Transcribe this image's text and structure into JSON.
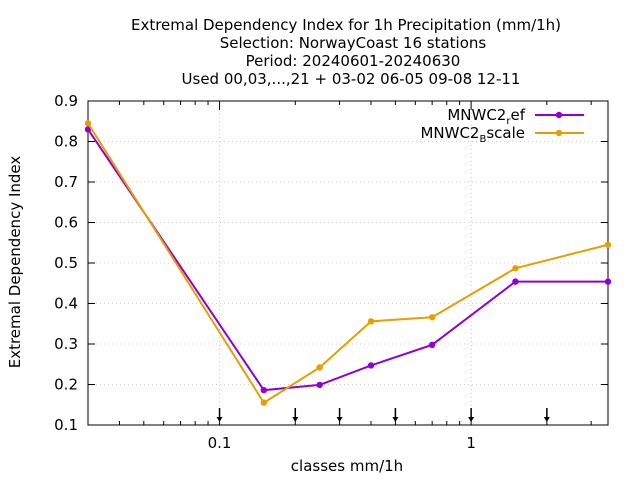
{
  "chart_data": {
    "type": "line",
    "title_lines": [
      "Extremal Dependency Index  for 1h Precipitation (mm/1h)",
      "Selection: NorwayCoast     16 stations",
      "Period: 20240601-20240630",
      "Used 00,03,...,21 + 03-02 06-05 09-08 12-11"
    ],
    "xlabel": "classes mm/1h",
    "ylabel": "Extremal Dependency Index",
    "xscale": "log",
    "xlim": [
      0.03,
      3.5
    ],
    "ylim": [
      0.1,
      0.9
    ],
    "xticks": [
      0.1,
      1
    ],
    "xtick_labels": [
      "0.1",
      "1"
    ],
    "yticks": [
      0.1,
      0.2,
      0.3,
      0.4,
      0.5,
      0.6,
      0.7,
      0.8,
      0.9
    ],
    "ytick_labels": [
      "0.1",
      "0.2",
      "0.3",
      "0.4",
      "0.5",
      "0.6",
      "0.7",
      "0.8",
      "0.9"
    ],
    "grid": true,
    "legend_position": "top-right",
    "class_markers_x": [
      0.1,
      0.2,
      0.3,
      0.5,
      1.0,
      2.0
    ],
    "x": [
      0.03,
      0.15,
      0.25,
      0.4,
      0.7,
      1.5,
      3.5
    ],
    "series": [
      {
        "name": "MNWC2",
        "name_sub": "r",
        "name_tail": "ef",
        "color": "#9400d3",
        "values": [
          0.83,
          0.186,
          0.199,
          0.247,
          0.298,
          0.454,
          0.454
        ]
      },
      {
        "name": "MNWC2",
        "name_sub": "B",
        "name_tail": "scale",
        "color": "#e69f00",
        "values": [
          0.845,
          0.155,
          0.242,
          0.356,
          0.366,
          0.487,
          0.545
        ]
      }
    ]
  }
}
